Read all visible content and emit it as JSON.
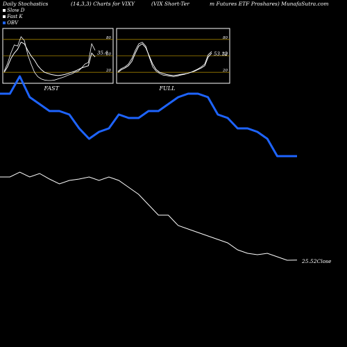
{
  "header": {
    "left": "Daily Stochastics",
    "params": "(14,3,3) Charts for VIXY",
    "name": "(VIX  Short-Ter",
    "right": "m Futures ETF Proshares) MunafaSutra.com"
  },
  "legend": [
    {
      "label": "Slow  D",
      "color": "#ffffff"
    },
    {
      "label": "Fast K",
      "color": "#ffffff"
    },
    {
      "label": "OBV",
      "color": "#1e64ff"
    }
  ],
  "colors": {
    "obv": "#1e64ff",
    "price": "#ffffff",
    "grid": "#a08000",
    "background": "#000000"
  },
  "chart_data": [
    {
      "type": "line",
      "title": "FAST",
      "yticks": [
        80,
        50,
        20
      ],
      "ylim": [
        0,
        100
      ],
      "value_label": "35.4",
      "series": [
        {
          "name": "Slow  D",
          "values": [
            20,
            30,
            45,
            55,
            62,
            75,
            72,
            60,
            50,
            42,
            32,
            25,
            20,
            18,
            16,
            15,
            14,
            15,
            16,
            18,
            20,
            22,
            25,
            28,
            30,
            32,
            55,
            48
          ]
        },
        {
          "name": "Fast K",
          "values": [
            22,
            36,
            55,
            70,
            68,
            85,
            78,
            52,
            35,
            20,
            12,
            8,
            6,
            5,
            5,
            6,
            8,
            10,
            12,
            15,
            17,
            20,
            22,
            28,
            35,
            38,
            72,
            60
          ]
        }
      ]
    },
    {
      "type": "line",
      "title": "FULL",
      "yticks": [
        80,
        50,
        20
      ],
      "ylim": [
        0,
        100
      ],
      "value_label": "53.12",
      "series": [
        {
          "name": "Slow  D",
          "values": [
            20,
            25,
            28,
            32,
            40,
            55,
            68,
            72,
            65,
            50,
            35,
            25,
            20,
            18,
            16,
            15,
            14,
            15,
            16,
            17,
            18,
            20,
            22,
            25,
            28,
            32,
            48,
            55
          ]
        },
        {
          "name": "Fast K",
          "values": [
            22,
            27,
            30,
            35,
            45,
            60,
            72,
            75,
            68,
            48,
            30,
            22,
            18,
            15,
            14,
            13,
            12,
            13,
            15,
            16,
            18,
            20,
            23,
            26,
            30,
            35,
            52,
            58
          ]
        }
      ]
    },
    {
      "type": "line",
      "series": [
        {
          "name": "OBV",
          "values": [
            73,
            73,
            78,
            72,
            70,
            68,
            68,
            67,
            63,
            60,
            62,
            63,
            67,
            66,
            66,
            68,
            68,
            70,
            72,
            73,
            73,
            72,
            67,
            66,
            63,
            63,
            62,
            60,
            55,
            55,
            55
          ]
        },
        {
          "name": "Close",
          "values": [
            37.5,
            37.5,
            38.2,
            37.5,
            38.0,
            37.2,
            36.5,
            37.0,
            37.2,
            37.5,
            37.0,
            37.5,
            37.0,
            36.0,
            35.0,
            33.5,
            32.0,
            32.0,
            30.5,
            30.0,
            29.5,
            29.0,
            28.5,
            28.0,
            27.0,
            26.5,
            26.3,
            26.5,
            26.0,
            25.5,
            25.52
          ]
        }
      ],
      "last_close_label": "25.52Close"
    }
  ]
}
